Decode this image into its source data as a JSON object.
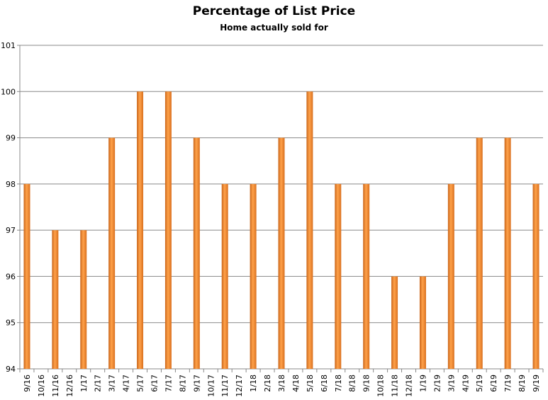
{
  "chart_data": {
    "type": "bar",
    "title": "Percentage of List Price",
    "subtitle": "Home actually sold for",
    "xlabel": "",
    "ylabel": "",
    "ylim": [
      94,
      101
    ],
    "yticks": [
      94,
      95,
      96,
      97,
      98,
      99,
      100,
      101
    ],
    "grid": true,
    "bar_color": "#f28a2e",
    "bar_color_dark": "#c9651a",
    "categories": [
      "9/16",
      "10/16",
      "11/16",
      "12/16",
      "1/17",
      "2/17",
      "3/17",
      "4/17",
      "5/17",
      "6/17",
      "7/17",
      "8/17",
      "9/17",
      "10/17",
      "11/17",
      "12/17",
      "1/18",
      "2/18",
      "3/18",
      "4/18",
      "5/18",
      "6/18",
      "7/18",
      "8/18",
      "9/18",
      "10/18",
      "11/18",
      "12/18",
      "1/19",
      "2/19",
      "3/19",
      "4/19",
      "5/19",
      "6/19",
      "7/19",
      "8/19",
      "9/19"
    ],
    "values": [
      98,
      null,
      97,
      null,
      97,
      null,
      99,
      null,
      100,
      null,
      100,
      null,
      99,
      null,
      98,
      null,
      98,
      null,
      99,
      null,
      100,
      null,
      98,
      null,
      98,
      null,
      96,
      null,
      96,
      null,
      98,
      null,
      99,
      null,
      99,
      null,
      98
    ]
  }
}
